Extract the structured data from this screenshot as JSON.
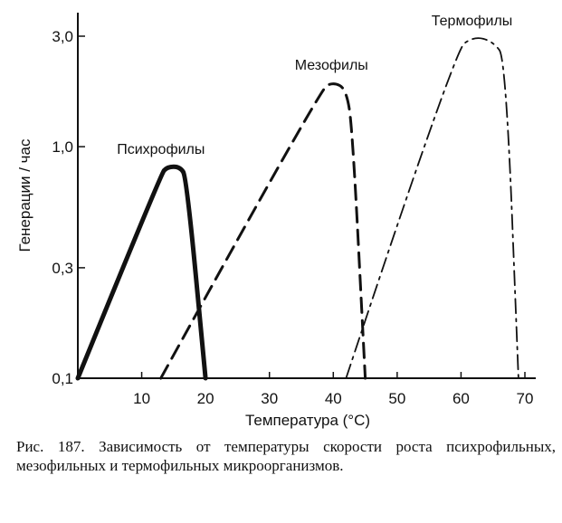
{
  "chart_data": {
    "type": "line",
    "title": "",
    "xlabel": "Температура (°C)",
    "ylabel": "Генерации / час",
    "xlim": [
      0,
      70
    ],
    "ylim": [
      0.1,
      3.0
    ],
    "yscale": "log",
    "x_ticks": [
      10,
      20,
      30,
      40,
      50,
      60,
      70
    ],
    "x_tick_labels": [
      "10",
      "20",
      "30",
      "40",
      "50",
      "60",
      "70"
    ],
    "y_ticks": [
      0.1,
      0.3,
      1.0,
      3.0
    ],
    "y_tick_labels": [
      "0,1",
      "0,3",
      "1,0",
      "3,0"
    ],
    "grid": false,
    "legend": "none",
    "series": [
      {
        "name": "Психрофилы",
        "style": "solid-thick",
        "color": "#111111",
        "points": [
          [
            0,
            0.1
          ],
          [
            13,
            0.76
          ],
          [
            14,
            0.82
          ],
          [
            16,
            0.82
          ],
          [
            17,
            0.74
          ],
          [
            20,
            0.1
          ]
        ]
      },
      {
        "name": "Мезофилы",
        "style": "dashed",
        "color": "#111111",
        "points": [
          [
            13,
            0.1
          ],
          [
            38,
            1.78
          ],
          [
            40,
            1.9
          ],
          [
            42,
            1.78
          ],
          [
            43,
            1.2
          ],
          [
            45,
            0.1
          ]
        ]
      },
      {
        "name": "Термофилы",
        "style": "dash-dot",
        "color": "#111111",
        "points": [
          [
            42,
            0.1
          ],
          [
            59,
            2.6
          ],
          [
            62,
            3.0
          ],
          [
            65,
            2.85
          ],
          [
            67,
            2.4
          ],
          [
            69,
            0.1
          ]
        ]
      }
    ]
  },
  "caption": "Рис. 187. Зависимость от температуры скорости роста психрофильных, мезофильных и термофильных микроорганизмов."
}
